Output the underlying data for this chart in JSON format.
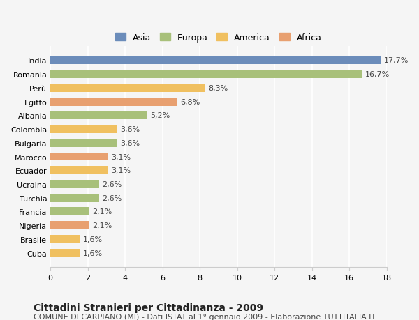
{
  "categories": [
    "India",
    "Romania",
    "Perù",
    "Egitto",
    "Albania",
    "Colombia",
    "Bulgaria",
    "Marocco",
    "Ecuador",
    "Ucraina",
    "Turchia",
    "Francia",
    "Nigeria",
    "Brasile",
    "Cuba"
  ],
  "values": [
    17.7,
    16.7,
    8.3,
    6.8,
    5.2,
    3.6,
    3.6,
    3.1,
    3.1,
    2.6,
    2.6,
    2.1,
    2.1,
    1.6,
    1.6
  ],
  "labels": [
    "17,7%",
    "16,7%",
    "8,3%",
    "6,8%",
    "5,2%",
    "3,6%",
    "3,6%",
    "3,1%",
    "3,1%",
    "2,6%",
    "2,6%",
    "2,1%",
    "2,1%",
    "1,6%",
    "1,6%"
  ],
  "colors": [
    "#6b8cba",
    "#a8c07a",
    "#f0c060",
    "#e8a070",
    "#a8c07a",
    "#f0c060",
    "#a8c07a",
    "#e8a070",
    "#f0c060",
    "#a8c07a",
    "#a8c07a",
    "#a8c07a",
    "#e8a070",
    "#f0c060",
    "#f0c060"
  ],
  "continent": [
    "Asia",
    "Europa",
    "America",
    "Africa",
    "Europa",
    "America",
    "Europa",
    "Africa",
    "America",
    "Europa",
    "Europa",
    "Europa",
    "Africa",
    "America",
    "America"
  ],
  "legend_labels": [
    "Asia",
    "Europa",
    "America",
    "Africa"
  ],
  "legend_colors": [
    "#6b8cba",
    "#a8c07a",
    "#f0c060",
    "#e8a070"
  ],
  "title_bold": "Cittadini Stranieri per Cittadinanza - 2009",
  "subtitle": "COMUNE DI CARPIANO (MI) - Dati ISTAT al 1° gennaio 2009 - Elaborazione TUTTITALIA.IT",
  "xlim": [
    0,
    18
  ],
  "xticks": [
    0,
    2,
    4,
    6,
    8,
    10,
    12,
    14,
    16,
    18
  ],
  "background_color": "#f5f5f5",
  "bar_height": 0.6,
  "label_fontsize": 8,
  "tick_fontsize": 8,
  "title_fontsize": 10,
  "subtitle_fontsize": 8
}
